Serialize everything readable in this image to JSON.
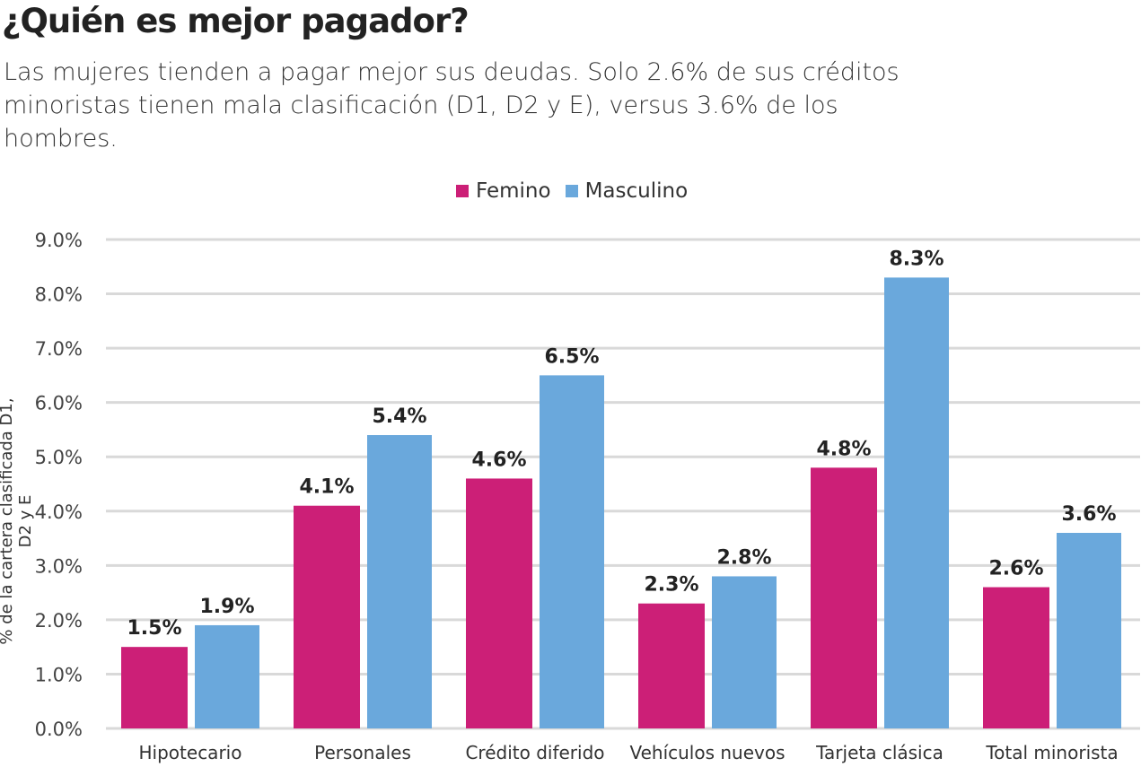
{
  "title": "¿Quién es mejor pagador?",
  "subtitle": "Las mujeres tienden a pagar mejor sus deudas. Solo 2.6% de sus créditos minoristas tienen mala clasificación (D1, D2 y E), versus 3.6% de los hombres.",
  "chart_data": {
    "type": "bar",
    "title": "¿Quién es mejor pagador?",
    "ylabel": "% de la cartera clasificada D1, D2 y E",
    "xlabel": "",
    "ylim": [
      0,
      9
    ],
    "yticks": [
      "0.0%",
      "1.0%",
      "2.0%",
      "3.0%",
      "4.0%",
      "5.0%",
      "6.0%",
      "7.0%",
      "8.0%",
      "9.0%"
    ],
    "grid": true,
    "legend_position": "top",
    "categories": [
      "Hipotecario",
      "Personales",
      "Crédito diferido",
      "Vehículos nuevos",
      "Tarjeta clásica",
      "Total minorista"
    ],
    "series": [
      {
        "name": "Femino",
        "color": "#cc1f77",
        "values": [
          1.5,
          4.1,
          4.6,
          2.3,
          4.8,
          2.6
        ],
        "labels": [
          "1.5%",
          "4.1%",
          "4.6%",
          "2.3%",
          "4.8%",
          "2.6%"
        ]
      },
      {
        "name": "Masculino",
        "color": "#6aa8dc",
        "values": [
          1.9,
          5.4,
          6.5,
          2.8,
          8.3,
          3.6
        ],
        "labels": [
          "1.9%",
          "5.4%",
          "6.5%",
          "2.8%",
          "8.3%",
          "3.6%"
        ]
      }
    ]
  }
}
